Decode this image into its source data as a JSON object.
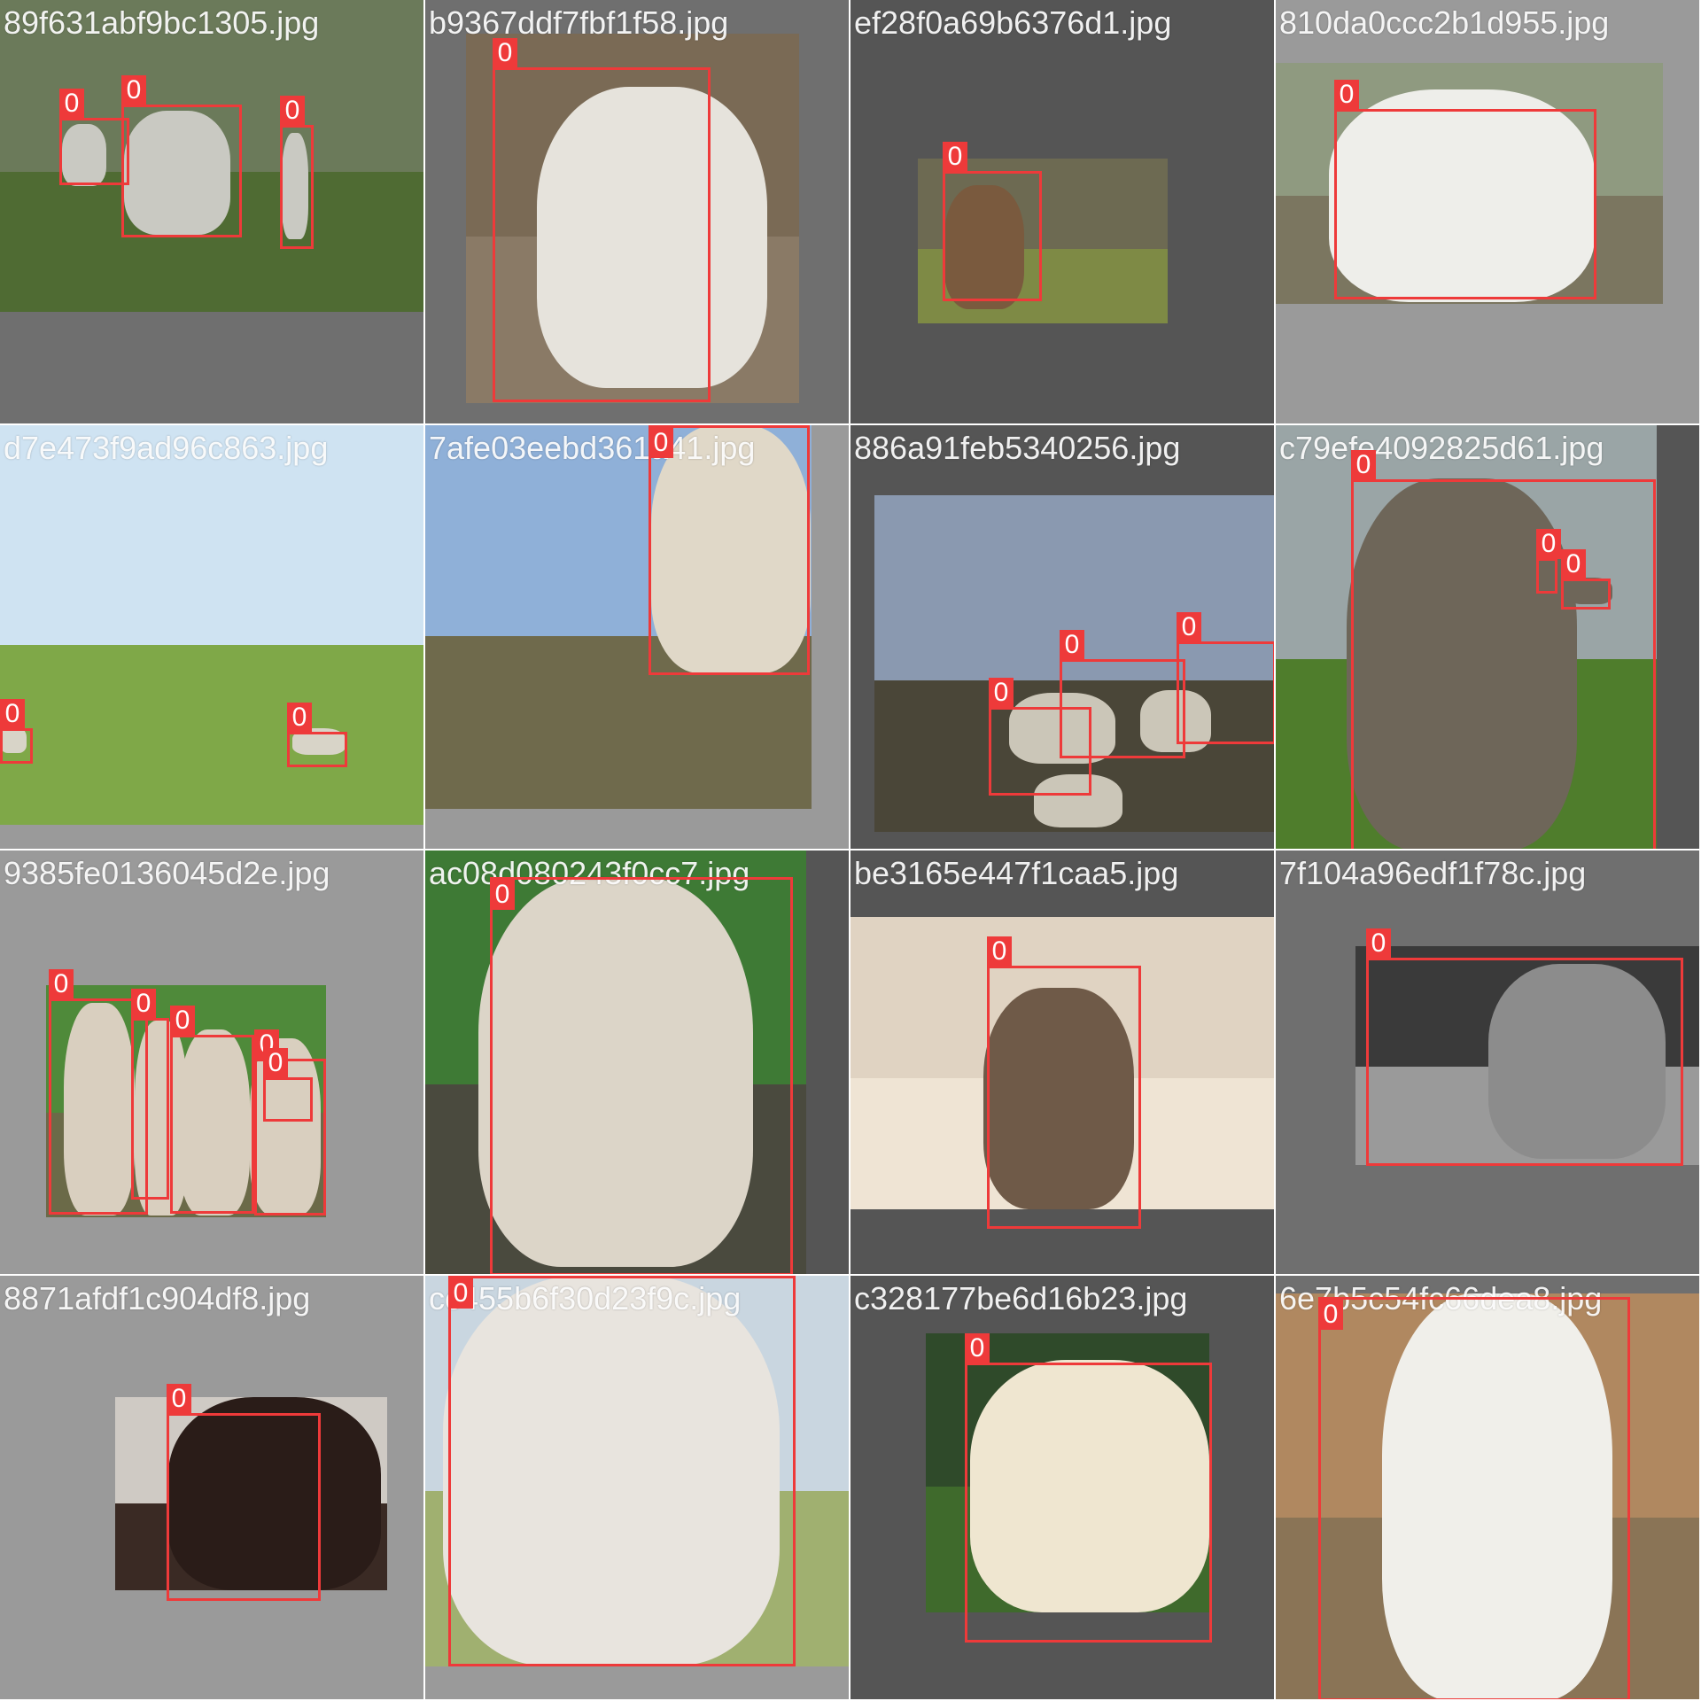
{
  "colors": {
    "box": "#ee3a3a",
    "label_text": "#ffffff",
    "filename_text": "#ffffff"
  },
  "tiles": [
    {
      "filename": "89f631abf9bc1305.jpg",
      "bg": "#6f6f6f",
      "photo": {
        "sky": "#6b7a5a",
        "ground": "#4f6b33",
        "animal": "#c9c9c2"
      },
      "boxes": [
        {
          "class": "0"
        },
        {
          "class": "0"
        },
        {
          "class": "0"
        }
      ]
    },
    {
      "filename": "b9367ddf7fbf1f58.jpg",
      "bg": "#6f6f6f",
      "photo": {
        "sky": "#7a6a55",
        "ground": "#8a7a66",
        "animal": "#e6e3dc"
      },
      "boxes": [
        {
          "class": "0"
        }
      ]
    },
    {
      "filename": "ef28f0a69b6376d1.jpg",
      "bg": "#555555",
      "photo": {
        "sky": "#6d6a52",
        "ground": "#7e8a45",
        "animal": "#7a5a3e"
      },
      "boxes": [
        {
          "class": "0"
        }
      ]
    },
    {
      "filename": "810da0ccc2b1d955.jpg",
      "bg": "#9a9a9a",
      "photo": {
        "sky": "#8f9a80",
        "ground": "#7b7660",
        "animal": "#eeeeea"
      },
      "boxes": [
        {
          "class": "0"
        }
      ]
    },
    {
      "filename": "d7e473f9ad96c863.jpg",
      "bg": "#9a9a9a",
      "photo": {
        "sky": "#cfe3f2",
        "ground": "#7fa848",
        "animal": "#d8d4c8"
      },
      "boxes": [
        {
          "class": "0"
        },
        {
          "class": "0"
        }
      ]
    },
    {
      "filename": "7afe03eebd361a41.jpg",
      "bg": "#9a9a9a",
      "photo": {
        "sky": "#8fb0d8",
        "ground": "#6f6a4c",
        "animal": "#e0d8c8"
      },
      "boxes": [
        {
          "class": "0"
        }
      ]
    },
    {
      "filename": "886a91feb5340256.jpg",
      "bg": "#555555",
      "photo": {
        "sky": "#8a99b0",
        "ground": "#4a4638",
        "animal": "#cbc6b8"
      },
      "boxes": [
        {
          "class": "0"
        },
        {
          "class": "0"
        },
        {
          "class": "0"
        }
      ]
    },
    {
      "filename": "c79efe4092825d61.jpg",
      "bg": "#555555",
      "photo": {
        "sky": "#9aa5a6",
        "ground": "#4f7d2c",
        "animal": "#6e6659"
      },
      "boxes": [
        {
          "class": "0"
        },
        {
          "class": "0"
        },
        {
          "class": "0"
        }
      ]
    },
    {
      "filename": "9385fe0136045d2e.jpg",
      "bg": "#9a9a9a",
      "photo": {
        "sky": "#4f8a3a",
        "ground": "#6b6a48",
        "animal": "#d9cfbf"
      },
      "boxes": [
        {
          "class": "0"
        },
        {
          "class": "0"
        },
        {
          "class": "0"
        },
        {
          "class": "0"
        },
        {
          "class": "0"
        },
        {
          "class": "0"
        }
      ]
    },
    {
      "filename": "ac08d080243f0cc7.jpg",
      "bg": "#555555",
      "photo": {
        "sky": "#3e7a35",
        "ground": "#4a4a3e",
        "animal": "#dcd5c8"
      },
      "boxes": [
        {
          "class": "0"
        }
      ]
    },
    {
      "filename": "be3165e447f1caa5.jpg",
      "bg": "#555555",
      "photo": {
        "sky": "#e0d3c2",
        "ground": "#efe4d4",
        "animal": "#6f5a48"
      },
      "boxes": [
        {
          "class": "0"
        }
      ]
    },
    {
      "filename": "7f104a96edf1f78c.jpg",
      "bg": "#6f6f6f",
      "photo": {
        "sky": "#3a3a3a",
        "ground": "#9a9a9a",
        "animal": "#8c8c8c"
      },
      "boxes": [
        {
          "class": "0"
        }
      ]
    },
    {
      "filename": "8871afdf1c904df8.jpg",
      "bg": "#9a9a9a",
      "photo": {
        "sky": "#cfcac4",
        "ground": "#3a2a24",
        "animal": "#2a1c18"
      },
      "boxes": [
        {
          "class": "0"
        }
      ]
    },
    {
      "filename": "cc455b6f30d23f9c.jpg",
      "bg": "#9a9a9a",
      "photo": {
        "sky": "#c9d6e0",
        "ground": "#a0b070",
        "animal": "#e8e4de"
      },
      "boxes": [
        {
          "class": "0"
        }
      ]
    },
    {
      "filename": "c328177be6d16b23.jpg",
      "bg": "#555555",
      "photo": {
        "sky": "#2f4a2a",
        "ground": "#3f6a2c",
        "animal": "#efe6d0"
      },
      "boxes": [
        {
          "class": "0"
        }
      ]
    },
    {
      "filename": "6e7b5c54fc66dea8.jpg",
      "bg": "#6f6f6f",
      "photo": {
        "sky": "#b08860",
        "ground": "#8a7456",
        "animal": "#f0efea"
      },
      "boxes": [
        {
          "class": "0"
        }
      ]
    }
  ]
}
